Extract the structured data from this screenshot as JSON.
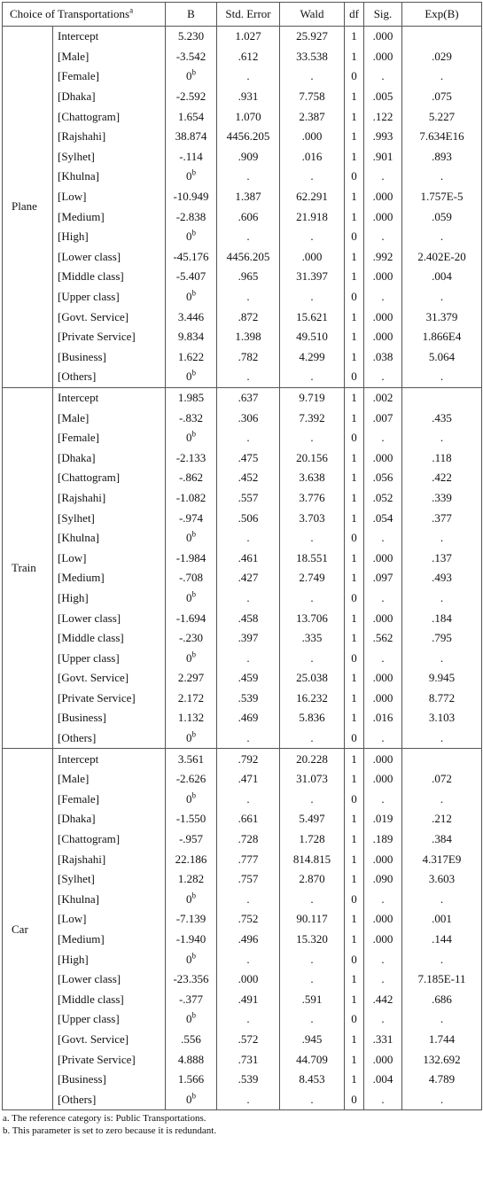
{
  "headers": [
    "Choice of Transportations",
    "B",
    "Std. Error",
    "Wald",
    "df",
    "Sig.",
    "Exp(B)"
  ],
  "header_sup": "a",
  "groups": [
    {
      "name": "Plane",
      "rows": [
        {
          "label": "Intercept",
          "b": "5.230",
          "se": "1.027",
          "wald": "25.927",
          "df": "1",
          "sig": ".000",
          "expb": ""
        },
        {
          "label": "[Male]",
          "b": "-3.542",
          "se": ".612",
          "wald": "33.538",
          "df": "1",
          "sig": ".000",
          "expb": ".029"
        },
        {
          "label": "[Female]",
          "b": "0",
          "bsup": "b",
          "se": ".",
          "wald": ".",
          "df": "0",
          "sig": ".",
          "expb": "."
        },
        {
          "label": "[Dhaka]",
          "b": "-2.592",
          "se": ".931",
          "wald": "7.758",
          "df": "1",
          "sig": ".005",
          "expb": ".075"
        },
        {
          "label": "[Chattogram]",
          "b": "1.654",
          "se": "1.070",
          "wald": "2.387",
          "df": "1",
          "sig": ".122",
          "expb": "5.227"
        },
        {
          "label": "[Rajshahi]",
          "b": "38.874",
          "se": "4456.205",
          "wald": ".000",
          "df": "1",
          "sig": ".993",
          "expb": "7.634E16"
        },
        {
          "label": "[Sylhet]",
          "b": "-.114",
          "se": ".909",
          "wald": ".016",
          "df": "1",
          "sig": ".901",
          "expb": ".893"
        },
        {
          "label": "[Khulna]",
          "b": "0",
          "bsup": "b",
          "se": ".",
          "wald": ".",
          "df": "0",
          "sig": ".",
          "expb": "."
        },
        {
          "label": "[Low]",
          "b": "-10.949",
          "se": "1.387",
          "wald": "62.291",
          "df": "1",
          "sig": ".000",
          "expb": "1.757E-5"
        },
        {
          "label": "[Medium]",
          "b": "-2.838",
          "se": ".606",
          "wald": "21.918",
          "df": "1",
          "sig": ".000",
          "expb": ".059"
        },
        {
          "label": "[High]",
          "b": "0",
          "bsup": "b",
          "se": ".",
          "wald": ".",
          "df": "0",
          "sig": ".",
          "expb": "."
        },
        {
          "label": "[Lower class]",
          "b": "-45.176",
          "se": "4456.205",
          "wald": ".000",
          "df": "1",
          "sig": ".992",
          "expb": "2.402E-20"
        },
        {
          "label": "[Middle class]",
          "b": "-5.407",
          "se": ".965",
          "wald": "31.397",
          "df": "1",
          "sig": ".000",
          "expb": ".004"
        },
        {
          "label": "[Upper class]",
          "b": "0",
          "bsup": "b",
          "se": ".",
          "wald": ".",
          "df": "0",
          "sig": ".",
          "expb": "."
        },
        {
          "label": "[Govt. Service]",
          "b": "3.446",
          "se": ".872",
          "wald": "15.621",
          "df": "1",
          "sig": ".000",
          "expb": "31.379"
        },
        {
          "label": "[Private Service]",
          "b": "9.834",
          "se": "1.398",
          "wald": "49.510",
          "df": "1",
          "sig": ".000",
          "expb": "1.866E4"
        },
        {
          "label": "[Business]",
          "b": "1.622",
          "se": ".782",
          "wald": "4.299",
          "df": "1",
          "sig": ".038",
          "expb": "5.064"
        },
        {
          "label": "[Others]",
          "b": "0",
          "bsup": "b",
          "se": ".",
          "wald": ".",
          "df": "0",
          "sig": ".",
          "expb": "."
        }
      ]
    },
    {
      "name": "Train",
      "rows": [
        {
          "label": "Intercept",
          "b": "1.985",
          "se": ".637",
          "wald": "9.719",
          "df": "1",
          "sig": ".002",
          "expb": ""
        },
        {
          "label": "[Male]",
          "b": "-.832",
          "se": ".306",
          "wald": "7.392",
          "df": "1",
          "sig": ".007",
          "expb": ".435"
        },
        {
          "label": "[Female]",
          "b": "0",
          "bsup": "b",
          "se": ".",
          "wald": ".",
          "df": "0",
          "sig": ".",
          "expb": "."
        },
        {
          "label": "[Dhaka]",
          "b": "-2.133",
          "se": ".475",
          "wald": "20.156",
          "df": "1",
          "sig": ".000",
          "expb": ".118"
        },
        {
          "label": "[Chattogram]",
          "b": "-.862",
          "se": ".452",
          "wald": "3.638",
          "df": "1",
          "sig": ".056",
          "expb": ".422"
        },
        {
          "label": "[Rajshahi]",
          "b": "-1.082",
          "se": ".557",
          "wald": "3.776",
          "df": "1",
          "sig": ".052",
          "expb": ".339"
        },
        {
          "label": "[Sylhet]",
          "b": "-.974",
          "se": ".506",
          "wald": "3.703",
          "df": "1",
          "sig": ".054",
          "expb": ".377"
        },
        {
          "label": "[Khulna]",
          "b": "0",
          "bsup": "b",
          "se": ".",
          "wald": ".",
          "df": "0",
          "sig": ".",
          "expb": "."
        },
        {
          "label": "[Low]",
          "b": "-1.984",
          "se": ".461",
          "wald": "18.551",
          "df": "1",
          "sig": ".000",
          "expb": ".137"
        },
        {
          "label": "[Medium]",
          "b": "-.708",
          "se": ".427",
          "wald": "2.749",
          "df": "1",
          "sig": ".097",
          "expb": ".493"
        },
        {
          "label": "[High]",
          "b": "0",
          "bsup": "b",
          "se": ".",
          "wald": ".",
          "df": "0",
          "sig": ".",
          "expb": "."
        },
        {
          "label": "[Lower class]",
          "b": "-1.694",
          "se": ".458",
          "wald": "13.706",
          "df": "1",
          "sig": ".000",
          "expb": ".184"
        },
        {
          "label": "[Middle class]",
          "b": "-.230",
          "se": ".397",
          "wald": ".335",
          "df": "1",
          "sig": ".562",
          "expb": ".795"
        },
        {
          "label": "[Upper class]",
          "b": "0",
          "bsup": "b",
          "se": ".",
          "wald": ".",
          "df": "0",
          "sig": ".",
          "expb": "."
        },
        {
          "label": "[Govt. Service]",
          "b": "2.297",
          "se": ".459",
          "wald": "25.038",
          "df": "1",
          "sig": ".000",
          "expb": "9.945"
        },
        {
          "label": "[Private Service]",
          "b": "2.172",
          "se": ".539",
          "wald": "16.232",
          "df": "1",
          "sig": ".000",
          "expb": "8.772"
        },
        {
          "label": "[Business]",
          "b": "1.132",
          "se": ".469",
          "wald": "5.836",
          "df": "1",
          "sig": ".016",
          "expb": "3.103"
        },
        {
          "label": "[Others]",
          "b": "0",
          "bsup": "b",
          "se": ".",
          "wald": ".",
          "df": "0",
          "sig": ".",
          "expb": "."
        }
      ]
    },
    {
      "name": "Car",
      "rows": [
        {
          "label": "Intercept",
          "b": "3.561",
          "se": ".792",
          "wald": "20.228",
          "df": "1",
          "sig": ".000",
          "expb": ""
        },
        {
          "label": "[Male]",
          "b": "-2.626",
          "se": ".471",
          "wald": "31.073",
          "df": "1",
          "sig": ".000",
          "expb": ".072"
        },
        {
          "label": "[Female]",
          "b": "0",
          "bsup": "b",
          "se": ".",
          "wald": ".",
          "df": "0",
          "sig": ".",
          "expb": "."
        },
        {
          "label": "[Dhaka]",
          "b": "-1.550",
          "se": ".661",
          "wald": "5.497",
          "df": "1",
          "sig": ".019",
          "expb": ".212"
        },
        {
          "label": "[Chattogram]",
          "b": "-.957",
          "se": ".728",
          "wald": "1.728",
          "df": "1",
          "sig": ".189",
          "expb": ".384"
        },
        {
          "label": "[Rajshahi]",
          "b": "22.186",
          "se": ".777",
          "wald": "814.815",
          "df": "1",
          "sig": ".000",
          "expb": "4.317E9"
        },
        {
          "label": "[Sylhet]",
          "b": "1.282",
          "se": ".757",
          "wald": "2.870",
          "df": "1",
          "sig": ".090",
          "expb": "3.603"
        },
        {
          "label": "[Khulna]",
          "b": "0",
          "bsup": "b",
          "se": ".",
          "wald": ".",
          "df": "0",
          "sig": ".",
          "expb": "."
        },
        {
          "label": "[Low]",
          "b": "-7.139",
          "se": ".752",
          "wald": "90.117",
          "df": "1",
          "sig": ".000",
          "expb": ".001"
        },
        {
          "label": "[Medium]",
          "b": "-1.940",
          "se": ".496",
          "wald": "15.320",
          "df": "1",
          "sig": ".000",
          "expb": ".144"
        },
        {
          "label": "[High]",
          "b": "0",
          "bsup": "b",
          "se": ".",
          "wald": ".",
          "df": "0",
          "sig": ".",
          "expb": "."
        },
        {
          "label": "[Lower class]",
          "b": "-23.356",
          "se": ".000",
          "wald": ".",
          "df": "1",
          "sig": ".",
          "expb": "7.185E-11"
        },
        {
          "label": "[Middle class]",
          "b": "-.377",
          "se": ".491",
          "wald": ".591",
          "df": "1",
          "sig": ".442",
          "expb": ".686"
        },
        {
          "label": "[Upper class]",
          "b": "0",
          "bsup": "b",
          "se": ".",
          "wald": ".",
          "df": "0",
          "sig": ".",
          "expb": "."
        },
        {
          "label": "[Govt. Service]",
          "b": ".556",
          "se": ".572",
          "wald": ".945",
          "df": "1",
          "sig": ".331",
          "expb": "1.744"
        },
        {
          "label": "[Private Service]",
          "b": "4.888",
          "se": ".731",
          "wald": "44.709",
          "df": "1",
          "sig": ".000",
          "expb": "132.692"
        },
        {
          "label": "[Business]",
          "b": "1.566",
          "se": ".539",
          "wald": "8.453",
          "df": "1",
          "sig": ".004",
          "expb": "4.789"
        },
        {
          "label": "[Others]",
          "b": "0",
          "bsup": "b",
          "se": ".",
          "wald": ".",
          "df": "0",
          "sig": ".",
          "expb": "."
        }
      ]
    }
  ],
  "notes": [
    "a. The reference category is: Public Transportations.",
    "b. This parameter is set to zero because it is redundant."
  ]
}
